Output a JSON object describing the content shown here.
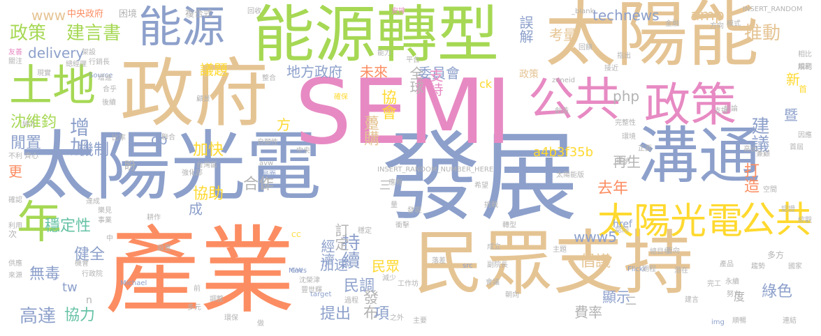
{
  "palette": {
    "orange": "#fc8d62",
    "blue": "#8da0cb",
    "pink": "#e78ac3",
    "green": "#a6d854",
    "yellow": "#ffd92f",
    "tan": "#e5c494",
    "gray": "#b3b3b3",
    "teal": "#66c2a5"
  },
  "words": [
    {
      "text": "產業",
      "color": "orange"
    },
    {
      "text": "發展",
      "color": "blue"
    },
    {
      "text": "太陽光電",
      "color": "blue"
    },
    {
      "text": "SEMI",
      "color": "pink"
    },
    {
      "text": "民眾支持",
      "color": "tan"
    },
    {
      "text": "太陽能",
      "color": "tan"
    },
    {
      "text": "能源轉型",
      "color": "green"
    },
    {
      "text": "政府",
      "color": "tan"
    },
    {
      "text": "溝通",
      "color": "blue"
    },
    {
      "text": "能源",
      "color": "blue"
    },
    {
      "text": "土地",
      "color": "green"
    },
    {
      "text": "公共",
      "color": "pink"
    },
    {
      "text": "政策",
      "color": "pink"
    },
    {
      "text": "年",
      "color": "green"
    },
    {
      "text": "太陽光電",
      "color": "yellow"
    },
    {
      "text": "公共",
      "color": "yellow"
    },
    {
      "text": "政策",
      "color": "green"
    },
    {
      "text": "建言書",
      "color": "green"
    },
    {
      "text": "www",
      "color": "tan"
    },
    {
      "text": "中央政府",
      "color": "orange"
    },
    {
      "text": "困境",
      "color": "gray"
    },
    {
      "text": "複合式",
      "color": "gray"
    },
    {
      "text": "technews",
      "color": "blue"
    },
    {
      "text": "INSERT_RANDOM",
      "color": "gray"
    },
    {
      "text": "delivery",
      "color": "blue"
    },
    {
      "text": "地方政府",
      "color": "blue"
    },
    {
      "text": "未來",
      "color": "orange"
    },
    {
      "text": "委員會",
      "color": "blue"
    },
    {
      "text": "全球",
      "color": "gray"
    },
    {
      "text": "誤解",
      "color": "blue"
    },
    {
      "text": "考量",
      "color": "tan"
    },
    {
      "text": "推動",
      "color": "tan"
    },
    {
      "text": "amp",
      "color": "tan"
    },
    {
      "text": "建議",
      "color": "blue"
    },
    {
      "text": "協會",
      "color": "yellow"
    },
    {
      "text": "躉購",
      "color": "tan"
    },
    {
      "text": "php",
      "color": "gray"
    },
    {
      "text": "增加",
      "color": "blue"
    },
    {
      "text": "機制",
      "color": "blue"
    },
    {
      "text": "沈維鈞",
      "color": "green"
    },
    {
      "text": "閒置",
      "color": "blue"
    },
    {
      "text": "加快",
      "color": "yellow"
    },
    {
      "text": "a4b3f35b",
      "color": "yellow"
    },
    {
      "text": "再生",
      "color": "gray"
    },
    {
      "text": "去年",
      "color": "orange"
    },
    {
      "text": "協助",
      "color": "yellow"
    },
    {
      "text": "合作",
      "color": "gray"
    },
    {
      "text": "穩定性",
      "color": "teal"
    },
    {
      "text": "持續",
      "color": "blue"
    },
    {
      "text": "經濟",
      "color": "blue"
    },
    {
      "text": "加速",
      "color": "blue"
    },
    {
      "text": "民眾",
      "color": "yellow"
    },
    {
      "text": "民調",
      "color": "blue"
    },
    {
      "text": "發布",
      "color": "gray"
    },
    {
      "text": "提出",
      "color": "blue"
    },
    {
      "text": "項",
      "color": "blue"
    },
    {
      "text": "健全",
      "color": "blue"
    },
    {
      "text": "無毒",
      "color": "blue"
    },
    {
      "text": "tw",
      "color": "blue"
    },
    {
      "text": "高達",
      "color": "blue"
    },
    {
      "text": "協力",
      "color": "teal"
    },
    {
      "text": "www5",
      "color": "blue"
    },
    {
      "text": "倡議",
      "color": "tan"
    },
    {
      "text": "費率",
      "color": "gray"
    },
    {
      "text": "顯示",
      "color": "blue"
    },
    {
      "text": "綠色",
      "color": "blue"
    },
    {
      "text": "打造",
      "color": "orange"
    },
    {
      "text": "新",
      "color": "yellow"
    },
    {
      "text": "暨",
      "color": "blue"
    },
    {
      "text": "首",
      "color": "yellow"
    },
    {
      "text": "盼",
      "color": "gray"
    },
    {
      "text": "更",
      "color": "orange"
    },
    {
      "text": "成",
      "color": "blue"
    },
    {
      "text": "方",
      "color": "yellow"
    },
    {
      "text": "訂定",
      "color": "gray"
    },
    {
      "text": "cb",
      "color": "blue"
    },
    {
      "text": "href",
      "color": "blue"
    },
    {
      "text": "多方",
      "color": "gray"
    },
    {
      "text": "度",
      "color": "gray"
    },
    {
      "text": "二",
      "color": "gray"
    },
    {
      "text": "三",
      "color": "gray"
    },
    {
      "text": "支持",
      "color": "pink"
    },
    {
      "text": "政策",
      "color": "tan"
    },
    {
      "text": "次",
      "color": "gray"
    },
    {
      "text": "n",
      "color": "gray"
    },
    {
      "text": "a",
      "color": "gray"
    },
    {
      "text": "INSERT_RANDOM_NUMBER_HERE",
      "color": "gray"
    },
    {
      "text": "zoneid",
      "color": "gray"
    },
    {
      "text": "太陽能版",
      "color": "gray"
    },
    {
      "text": "能力",
      "color": "gray"
    },
    {
      "text": "安排",
      "color": "pink"
    },
    {
      "text": "Source",
      "color": "blue"
    },
    {
      "text": "Michael",
      "color": "blue"
    },
    {
      "text": "Mees",
      "color": "blue"
    },
    {
      "text": "target",
      "color": "blue"
    },
    {
      "text": "Flickr",
      "color": "blue"
    },
    {
      "text": "GW",
      "color": "blue"
    },
    {
      "text": "CC",
      "color": "yellow"
    },
    {
      "text": "src",
      "color": "blue"
    },
    {
      "text": "img",
      "color": "blue"
    },
    {
      "text": "ck",
      "color": "yellow"
    },
    {
      "text": "_blank",
      "color": "gray"
    },
    {
      "text": "avw",
      "color": "gray"
    },
    {
      "text": "局面",
      "color": "blue"
    },
    {
      "text": "金融",
      "color": "gray"
    },
    {
      "text": "方向",
      "color": "gray"
    },
    {
      "text": "模式",
      "color": "gray"
    },
    {
      "text": "回收",
      "color": "gray"
    },
    {
      "text": "架設",
      "color": "gray"
    },
    {
      "text": "總經理",
      "color": "gray"
    },
    {
      "text": "行銷長",
      "color": "gray"
    },
    {
      "text": "議題",
      "color": "yellow"
    },
    {
      "text": "整合",
      "color": "gray"
    },
    {
      "text": "平台",
      "color": "gray"
    },
    {
      "text": "確保",
      "color": "yellow"
    },
    {
      "text": "創造",
      "color": "gray"
    },
    {
      "text": "接近",
      "color": "gray"
    },
    {
      "text": "指出",
      "color": "gray"
    },
    {
      "text": "回饋",
      "color": "gray"
    },
    {
      "text": "友善",
      "color": "pink"
    },
    {
      "text": "關注",
      "color": "gray"
    },
    {
      "text": "現實",
      "color": "gray"
    },
    {
      "text": "增進",
      "color": "gray"
    },
    {
      "text": "合乎",
      "color": "gray"
    },
    {
      "text": "後續",
      "color": "gray"
    },
    {
      "text": "納入",
      "color": "gray"
    },
    {
      "text": "顧景",
      "color": "gray"
    },
    {
      "text": "比率",
      "color": "gray"
    },
    {
      "text": "不利",
      "color": "gray"
    },
    {
      "text": "齊心",
      "color": "gray"
    },
    {
      "text": "聯合",
      "color": "gray"
    },
    {
      "text": "自願性",
      "color": "gray"
    },
    {
      "text": "台灣區",
      "color": "gray"
    },
    {
      "text": "強化部",
      "color": "gray"
    },
    {
      "text": "中央",
      "color": "gray"
    },
    {
      "text": "應有",
      "color": "gray"
    },
    {
      "text": "希望",
      "color": "gray"
    },
    {
      "text": "挑戰",
      "color": "gray"
    },
    {
      "text": "轉型",
      "color": "gray"
    },
    {
      "text": "完整性",
      "color": "gray"
    },
    {
      "text": "環境",
      "color": "gray"
    },
    {
      "text": "採納",
      "color": "gray"
    },
    {
      "text": "正面",
      "color": "gray"
    },
    {
      "text": "支撐",
      "color": "gray"
    },
    {
      "text": "討論",
      "color": "gray"
    },
    {
      "text": "高出",
      "color": "gray"
    },
    {
      "text": "兼顧",
      "color": "gray"
    },
    {
      "text": "因應",
      "color": "gray"
    },
    {
      "text": "首屆",
      "color": "gray"
    },
    {
      "text": "規範",
      "color": "gray"
    },
    {
      "text": "相比",
      "color": "gray"
    },
    {
      "text": "順利",
      "color": "gray"
    },
    {
      "text": "綜觀",
      "color": "gray"
    },
    {
      "text": "空間",
      "color": "gray"
    },
    {
      "text": "認證",
      "color": "gray"
    },
    {
      "text": "達成",
      "color": "gray"
    },
    {
      "text": "樂見",
      "color": "gray"
    },
    {
      "text": "事業",
      "color": "gray"
    },
    {
      "text": "確認",
      "color": "gray"
    },
    {
      "text": "利用",
      "color": "gray"
    },
    {
      "text": "耕作",
      "color": "gray"
    },
    {
      "text": "設置",
      "color": "gray"
    },
    {
      "text": "穩定",
      "color": "gray"
    },
    {
      "text": "衝擊",
      "color": "gray"
    },
    {
      "text": "發現",
      "color": "gray"
    },
    {
      "text": "認同",
      "color": "gray"
    },
    {
      "text": "成立",
      "color": "gray"
    },
    {
      "text": "落差",
      "color": "gray"
    },
    {
      "text": "副院長",
      "color": "gray"
    },
    {
      "text": "主題",
      "color": "gray"
    },
    {
      "text": "總目標",
      "color": "gray"
    },
    {
      "text": "面向",
      "color": "gray"
    },
    {
      "text": "產品",
      "color": "gray"
    },
    {
      "text": "趨勢",
      "color": "gray"
    },
    {
      "text": "會議",
      "color": "gray"
    },
    {
      "text": "期程",
      "color": "gray"
    },
    {
      "text": "潛在",
      "color": "gray"
    },
    {
      "text": "永續",
      "color": "gray"
    },
    {
      "text": "努力",
      "color": "gray"
    },
    {
      "text": "國家",
      "color": "gray"
    },
    {
      "text": "減少",
      "color": "gray"
    },
    {
      "text": "工作坊",
      "color": "gray"
    },
    {
      "text": "過程",
      "color": "gray"
    },
    {
      "text": "朝向",
      "color": "gray"
    },
    {
      "text": "之外",
      "color": "gray"
    },
    {
      "text": "主要",
      "color": "gray"
    },
    {
      "text": "建言",
      "color": "gray"
    },
    {
      "text": "順暢",
      "color": "gray"
    },
    {
      "text": "連結",
      "color": "gray"
    },
    {
      "text": "沈榮津",
      "color": "gray"
    },
    {
      "text": "豐世輝",
      "color": "gray"
    },
    {
      "text": "調整",
      "color": "gray"
    },
    {
      "text": "多元",
      "color": "gray"
    },
    {
      "text": "環保",
      "color": "gray"
    },
    {
      "text": "做",
      "color": "gray"
    },
    {
      "text": "完工",
      "color": "gray"
    },
    {
      "text": "機會",
      "color": "gray"
    },
    {
      "text": "行政院",
      "color": "gray"
    },
    {
      "text": "來源",
      "color": "gray"
    },
    {
      "text": "供應",
      "color": "gray"
    },
    {
      "text": "前",
      "color": "gray"
    },
    {
      "text": "中",
      "color": "gray"
    },
    {
      "text": "量",
      "color": "gray"
    }
  ]
}
